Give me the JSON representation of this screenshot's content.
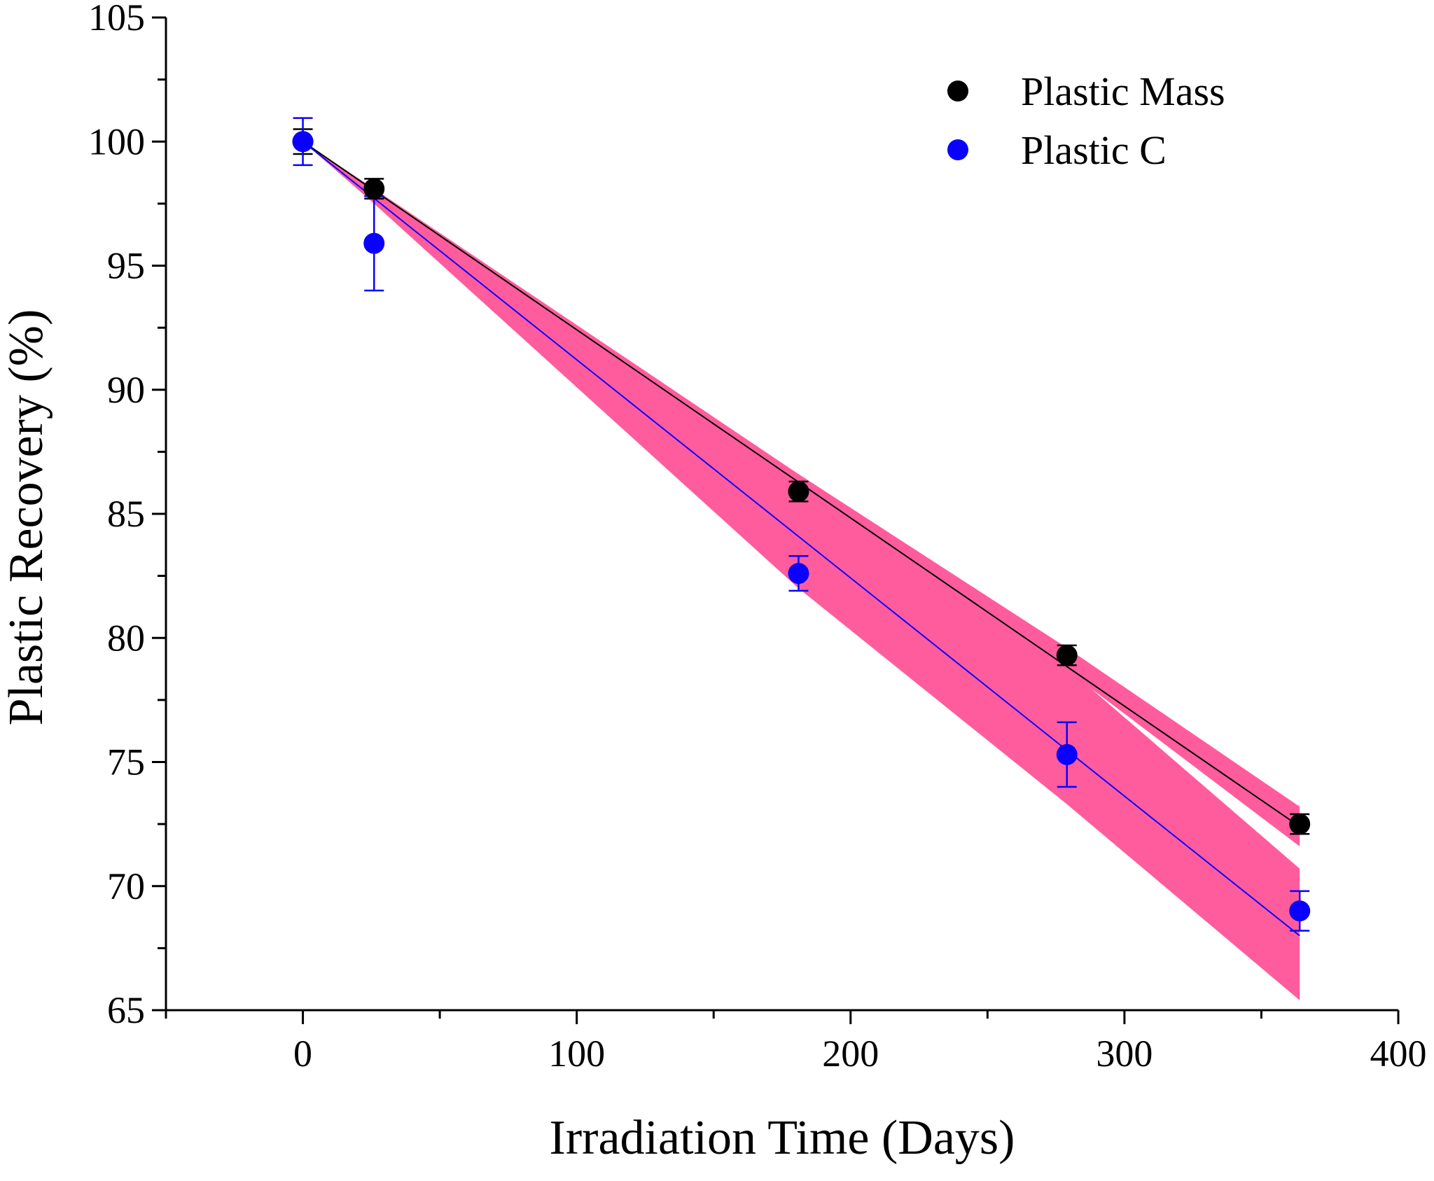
{
  "chart_data": {
    "type": "scatter",
    "title": "",
    "xlabel": "Irradiation Time (Days)",
    "ylabel": "Plastic Recovery (%)",
    "xlim": [
      -50,
      400
    ],
    "ylim": [
      65,
      105
    ],
    "xticks": [
      0,
      100,
      200,
      300,
      400
    ],
    "yticks": [
      65,
      70,
      75,
      80,
      85,
      90,
      95,
      100,
      105
    ],
    "legend_position": "top-right",
    "grid": false,
    "confidence_band_color": "#ff5c9d",
    "series": [
      {
        "name": "Plastic Mass",
        "color": "#000000",
        "x": [
          0,
          26,
          181,
          279,
          364
        ],
        "y": [
          100.0,
          98.1,
          85.9,
          79.3,
          72.5
        ],
        "yerr": [
          0.5,
          0.4,
          0.4,
          0.4,
          0.4
        ],
        "fit": {
          "x": [
            0,
            364
          ],
          "y": [
            100.0,
            72.4
          ]
        },
        "band": {
          "x": [
            0,
            26,
            181,
            279,
            364
          ],
          "upper": [
            100.0,
            98.1,
            86.6,
            79.6,
            73.2
          ],
          "lower": [
            100.0,
            97.9,
            85.7,
            78.7,
            71.6
          ]
        }
      },
      {
        "name": "Plastic C",
        "color": "#0a00ff",
        "x": [
          0,
          26,
          181,
          279,
          364
        ],
        "y": [
          100.0,
          95.9,
          82.6,
          75.3,
          69.0
        ],
        "yerr": [
          0.95,
          1.9,
          0.7,
          1.3,
          0.8
        ],
        "fit": {
          "x": [
            0,
            364
          ],
          "y": [
            100.0,
            68.0
          ]
        },
        "band": {
          "x": [
            0,
            26,
            181,
            279,
            364
          ],
          "upper": [
            100.0,
            97.9,
            86.3,
            78.8,
            70.7
          ],
          "lower": [
            100.0,
            97.5,
            82.0,
            73.3,
            65.4
          ]
        }
      }
    ]
  }
}
